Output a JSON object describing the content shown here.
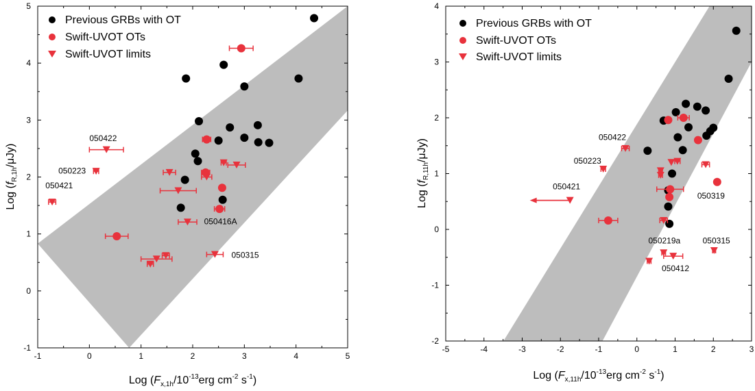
{
  "colors": {
    "black": "#000000",
    "red": "#e8323c",
    "band": "#bdbdbd"
  },
  "chart_data": [
    {
      "type": "scatter",
      "xlabel": {
        "pre": "Log (",
        "sym": "F",
        "sub": "x,1h",
        "mid": "/10",
        "sup1": "-13",
        "units": "erg cm",
        "sup2": "-2",
        "s": " s",
        "sup3": "-1",
        "post": ")"
      },
      "ylabel": {
        "pre": "Log (",
        "sym": "f",
        "sub": "R,1h",
        "post": "/μJy)"
      },
      "xlim": [
        -1,
        5
      ],
      "ylim": [
        -1,
        5
      ],
      "xticks": [
        "-1",
        "0",
        "1",
        "2",
        "3",
        "4",
        "5"
      ],
      "yticks": [
        "-1",
        "0",
        "1",
        "2",
        "3",
        "4",
        "5"
      ],
      "legend": {
        "placement": "top-left",
        "entries": [
          "Previous GRBs with OT",
          "Swift-UVOT OTs",
          "Swift-UVOT limits"
        ]
      },
      "band": [
        [
          -1,
          0.83
        ],
        [
          5,
          5
        ],
        [
          5,
          3.17
        ],
        [
          0.77,
          -1
        ]
      ],
      "series": [
        {
          "name": "Previous GRBs with OT",
          "marker": "circle",
          "points": [
            [
              1.87,
              3.73
            ],
            [
              2.6,
              3.97
            ],
            [
              3.0,
              3.59
            ],
            [
              4.05,
              3.73
            ],
            [
              4.35,
              4.79
            ],
            [
              2.12,
              2.98
            ],
            [
              2.72,
              2.87
            ],
            [
              3.26,
              2.91
            ],
            [
              2.5,
              2.64
            ],
            [
              3.0,
              2.69
            ],
            [
              3.27,
              2.61
            ],
            [
              3.48,
              2.6
            ],
            [
              2.05,
              2.41
            ],
            [
              2.1,
              2.28
            ],
            [
              1.85,
              1.95
            ],
            [
              1.77,
              1.46
            ],
            [
              2.58,
              1.6
            ]
          ]
        },
        {
          "name": "Swift-UVOT OTs",
          "marker": "circle-red",
          "points": [
            [
              2.94,
              4.26,
              0.23
            ],
            [
              2.27,
              2.66,
              0.08
            ],
            [
              2.25,
              2.08,
              0.08
            ],
            [
              2.57,
              1.81,
              0.0
            ],
            [
              2.52,
              1.44,
              0.1
            ],
            [
              0.53,
              0.96,
              0.22
            ]
          ]
        },
        {
          "name": "Swift-UVOT limits",
          "marker": "triangle",
          "points": [
            [
              0.33,
              2.48,
              0.33
            ],
            [
              0.13,
              2.1,
              0.05
            ],
            [
              -0.72,
              1.56,
              0.07
            ],
            [
              1.55,
              2.08,
              0.12
            ],
            [
              2.27,
              2.0,
              0.1
            ],
            [
              2.6,
              2.25,
              0.05
            ],
            [
              2.85,
              2.21,
              0.17
            ],
            [
              1.72,
              1.76,
              0.35
            ],
            [
              1.9,
              1.21,
              0.18
            ],
            [
              1.48,
              0.62,
              0.07
            ],
            [
              1.3,
              0.56,
              0.3
            ],
            [
              1.18,
              0.47,
              0.06
            ],
            [
              2.43,
              0.64,
              0.16
            ]
          ]
        }
      ],
      "annotations": [
        {
          "text": "050422",
          "x": 0.0,
          "y": 2.63
        },
        {
          "text": "050223",
          "x": -0.6,
          "y": 2.06
        },
        {
          "text": "050421",
          "x": -0.85,
          "y": 1.8
        },
        {
          "text": "050416A",
          "x": 2.22,
          "y": 1.17
        },
        {
          "text": "050315",
          "x": 2.75,
          "y": 0.58
        }
      ]
    },
    {
      "type": "scatter",
      "xlabel": {
        "pre": "Log (",
        "sym": "F",
        "sub": "x,11h",
        "mid": "/10",
        "sup1": "-13",
        "units": "erg cm",
        "sup2": "-2",
        "s": " s",
        "sup3": "-1",
        "post": ")"
      },
      "ylabel": {
        "pre": "Log (",
        "sym": "f",
        "sub": "R,11h",
        "post": "/μJy)"
      },
      "xlim": [
        -5,
        3
      ],
      "ylim": [
        -2,
        4
      ],
      "xticks": [
        "-5",
        "-4",
        "-3",
        "-2",
        "-1",
        "0",
        "1",
        "2",
        "3"
      ],
      "yticks": [
        "-2",
        "-1",
        "0",
        "1",
        "2",
        "3",
        "4"
      ],
      "legend": {
        "placement": "top-left",
        "entries": [
          "Previous GRBs with OT",
          "Swift-UVOT OTs",
          "Swift-UVOT limits"
        ]
      },
      "band": [
        [
          -3.49,
          -2
        ],
        [
          1.9,
          4
        ],
        [
          3,
          4
        ],
        [
          3,
          3.0
        ],
        [
          -0.9,
          -2
        ]
      ],
      "series": [
        {
          "name": "Previous GRBs with OT",
          "marker": "circle",
          "points": [
            [
              2.6,
              3.56
            ],
            [
              2.4,
              2.7
            ],
            [
              1.28,
              2.25
            ],
            [
              1.58,
              2.2
            ],
            [
              1.02,
              2.1
            ],
            [
              1.8,
              2.13
            ],
            [
              1.35,
              1.83
            ],
            [
              2.0,
              1.82
            ],
            [
              1.92,
              1.76
            ],
            [
              1.82,
              1.68
            ],
            [
              0.7,
              1.95
            ],
            [
              1.07,
              1.65
            ],
            [
              0.28,
              1.41
            ],
            [
              1.2,
              1.42
            ],
            [
              0.92,
              1.0
            ],
            [
              0.82,
              0.7
            ],
            [
              0.82,
              0.41
            ],
            [
              0.85,
              0.1
            ]
          ]
        },
        {
          "name": "Swift-UVOT OTs",
          "marker": "circle-red",
          "points": [
            [
              0.82,
              1.96,
              0.05
            ],
            [
              1.22,
              2.0,
              0.15
            ],
            [
              1.6,
              1.6,
              0.05
            ],
            [
              0.85,
              0.58,
              0.05
            ],
            [
              0.87,
              0.72,
              0.35
            ],
            [
              2.1,
              0.85,
              0.02
            ],
            [
              -0.75,
              0.16,
              0.25
            ]
          ]
        },
        {
          "name": "Swift-UVOT limits",
          "marker": "triangle",
          "points": [
            [
              -0.3,
              1.45,
              0.1
            ],
            [
              -0.88,
              1.08,
              0.06
            ],
            [
              0.62,
              1.05,
              0.05
            ],
            [
              0.62,
              0.97,
              0.05
            ],
            [
              1.06,
              1.22,
              0.07
            ],
            [
              1.8,
              1.16,
              0.1
            ],
            [
              0.9,
              1.2,
              0.0
            ],
            [
              0.7,
              0.16,
              0.1
            ],
            [
              0.7,
              -0.42,
              0.05
            ],
            [
              0.95,
              -0.48,
              0.25
            ],
            [
              0.32,
              -0.57,
              0.05
            ],
            [
              2.02,
              -0.38,
              0.04
            ]
          ]
        }
      ],
      "arrow_limit": {
        "x": -1.75,
        "y": 0.52,
        "to_x": -2.8
      },
      "annotations": [
        {
          "text": "050422",
          "x": -1.0,
          "y": 1.6
        },
        {
          "text": "050223",
          "x": -1.65,
          "y": 1.18
        },
        {
          "text": "050421",
          "x": -2.2,
          "y": 0.72
        },
        {
          "text": "050319",
          "x": 1.58,
          "y": 0.55
        },
        {
          "text": "050219a",
          "x": 0.3,
          "y": -0.25
        },
        {
          "text": "050315",
          "x": 1.72,
          "y": -0.25
        },
        {
          "text": "050412",
          "x": 0.65,
          "y": -0.75
        }
      ]
    }
  ]
}
